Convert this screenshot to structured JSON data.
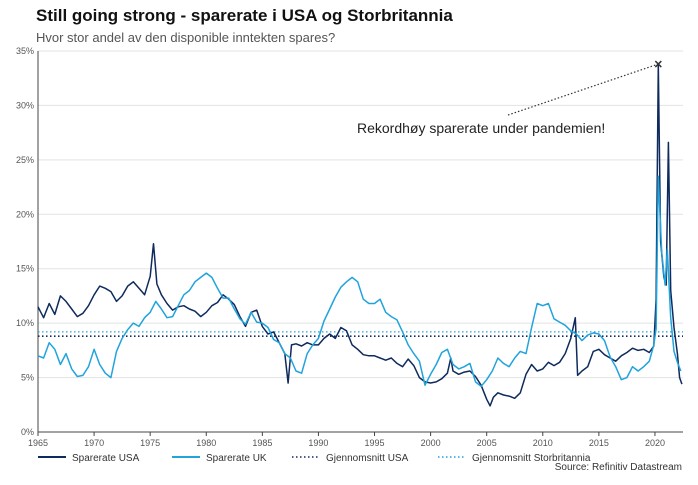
{
  "title": "Still going strong - sparerate i USA og Storbritannia",
  "subtitle": "Hvor stor andel av den disponible inntekten spares?",
  "source": "Source: Refinitiv Datastream",
  "annotation": "Rekordhøy sparerate under pandemien!",
  "colors": {
    "usa": "#0f2a5c",
    "uk": "#21a3dc",
    "grid": "#e3e3e3",
    "axis": "#444444"
  },
  "chart_data": {
    "type": "line",
    "title": "Still going strong - sparerate i USA og Storbritannia",
    "subtitle": "Hvor stor andel av den disponible inntekten spares?",
    "xlabel": "",
    "ylabel": "",
    "xlim": [
      1965,
      2022.5
    ],
    "ylim": [
      0,
      35
    ],
    "x_ticks": [
      1965,
      1970,
      1975,
      1980,
      1985,
      1990,
      1995,
      2000,
      2005,
      2010,
      2015,
      2020
    ],
    "x_tick_labels": [
      "1965",
      "1970",
      "1975",
      "1980",
      "1985",
      "1990",
      "1995",
      "2000",
      "2005",
      "2010",
      "2015",
      "2020"
    ],
    "y_ticks": [
      0,
      5,
      10,
      15,
      20,
      25,
      30,
      35
    ],
    "y_tick_labels": [
      "0%",
      "5%",
      "10%",
      "15%",
      "20%",
      "25%",
      "30%",
      "35%"
    ],
    "grid": true,
    "legend_position": "bottom",
    "series": [
      {
        "name": "Sparerate USA",
        "style": "solid",
        "points": [
          [
            1965.0,
            11.5
          ],
          [
            1965.5,
            10.5
          ],
          [
            1966.0,
            11.8
          ],
          [
            1966.5,
            10.8
          ],
          [
            1967.0,
            12.5
          ],
          [
            1967.5,
            12.0
          ],
          [
            1968.0,
            11.3
          ],
          [
            1968.5,
            10.6
          ],
          [
            1969.0,
            10.9
          ],
          [
            1969.5,
            11.6
          ],
          [
            1970.0,
            12.6
          ],
          [
            1970.5,
            13.4
          ],
          [
            1971.0,
            13.2
          ],
          [
            1971.5,
            12.9
          ],
          [
            1972.0,
            12.0
          ],
          [
            1972.5,
            12.5
          ],
          [
            1973.0,
            13.4
          ],
          [
            1973.5,
            13.8
          ],
          [
            1974.0,
            13.2
          ],
          [
            1974.5,
            12.6
          ],
          [
            1975.0,
            14.3
          ],
          [
            1975.3,
            17.3
          ],
          [
            1975.6,
            13.6
          ],
          [
            1976.0,
            12.6
          ],
          [
            1976.5,
            11.8
          ],
          [
            1977.0,
            11.2
          ],
          [
            1977.5,
            11.5
          ],
          [
            1978.0,
            11.6
          ],
          [
            1978.5,
            11.3
          ],
          [
            1979.0,
            11.1
          ],
          [
            1979.5,
            10.6
          ],
          [
            1980.0,
            11.0
          ],
          [
            1980.5,
            11.6
          ],
          [
            1981.0,
            11.9
          ],
          [
            1981.5,
            12.6
          ],
          [
            1982.0,
            12.2
          ],
          [
            1982.5,
            11.7
          ],
          [
            1983.0,
            10.6
          ],
          [
            1983.5,
            9.7
          ],
          [
            1984.0,
            11.0
          ],
          [
            1984.5,
            11.2
          ],
          [
            1985.0,
            9.7
          ],
          [
            1985.5,
            9.0
          ],
          [
            1986.0,
            9.2
          ],
          [
            1986.5,
            8.2
          ],
          [
            1987.0,
            7.2
          ],
          [
            1987.3,
            4.5
          ],
          [
            1987.6,
            8.0
          ],
          [
            1988.0,
            8.1
          ],
          [
            1988.5,
            7.9
          ],
          [
            1989.0,
            8.2
          ],
          [
            1989.5,
            8.0
          ],
          [
            1990.0,
            8.0
          ],
          [
            1990.5,
            8.6
          ],
          [
            1991.0,
            9.0
          ],
          [
            1991.5,
            8.6
          ],
          [
            1992.0,
            9.6
          ],
          [
            1992.5,
            9.3
          ],
          [
            1993.0,
            8.0
          ],
          [
            1993.5,
            7.6
          ],
          [
            1994.0,
            7.1
          ],
          [
            1994.5,
            7.0
          ],
          [
            1995.0,
            7.0
          ],
          [
            1995.5,
            6.8
          ],
          [
            1996.0,
            6.6
          ],
          [
            1996.5,
            6.8
          ],
          [
            1997.0,
            6.3
          ],
          [
            1997.5,
            6.0
          ],
          [
            1998.0,
            6.7
          ],
          [
            1998.5,
            6.1
          ],
          [
            1999.0,
            5.0
          ],
          [
            1999.5,
            4.6
          ],
          [
            2000.0,
            4.5
          ],
          [
            2000.5,
            4.6
          ],
          [
            2001.0,
            4.9
          ],
          [
            2001.5,
            5.4
          ],
          [
            2001.8,
            6.8
          ],
          [
            2002.0,
            5.6
          ],
          [
            2002.5,
            5.3
          ],
          [
            2003.0,
            5.5
          ],
          [
            2003.5,
            5.6
          ],
          [
            2004.0,
            5.1
          ],
          [
            2004.5,
            4.3
          ],
          [
            2005.0,
            3.0
          ],
          [
            2005.3,
            2.4
          ],
          [
            2005.6,
            3.2
          ],
          [
            2006.0,
            3.6
          ],
          [
            2006.5,
            3.4
          ],
          [
            2007.0,
            3.3
          ],
          [
            2007.5,
            3.1
          ],
          [
            2008.0,
            3.6
          ],
          [
            2008.5,
            5.3
          ],
          [
            2009.0,
            6.2
          ],
          [
            2009.5,
            5.6
          ],
          [
            2010.0,
            5.8
          ],
          [
            2010.5,
            6.4
          ],
          [
            2011.0,
            6.1
          ],
          [
            2011.5,
            6.4
          ],
          [
            2012.0,
            7.2
          ],
          [
            2012.5,
            8.6
          ],
          [
            2012.9,
            10.5
          ],
          [
            2013.1,
            5.2
          ],
          [
            2013.5,
            5.6
          ],
          [
            2014.0,
            6.0
          ],
          [
            2014.5,
            7.4
          ],
          [
            2015.0,
            7.6
          ],
          [
            2015.5,
            7.1
          ],
          [
            2016.0,
            6.8
          ],
          [
            2016.5,
            6.5
          ],
          [
            2017.0,
            7.0
          ],
          [
            2017.5,
            7.3
          ],
          [
            2018.0,
            7.7
          ],
          [
            2018.5,
            7.5
          ],
          [
            2019.0,
            7.6
          ],
          [
            2019.5,
            7.3
          ],
          [
            2019.9,
            7.9
          ],
          [
            2020.1,
            12.2
          ],
          [
            2020.3,
            33.8
          ],
          [
            2020.5,
            17.5
          ],
          [
            2020.8,
            14.2
          ],
          [
            2021.0,
            13.5
          ],
          [
            2021.2,
            26.6
          ],
          [
            2021.4,
            13.0
          ],
          [
            2021.7,
            9.6
          ],
          [
            2022.0,
            7.2
          ],
          [
            2022.2,
            5.0
          ],
          [
            2022.4,
            4.4
          ]
        ]
      },
      {
        "name": "Sparerate UK",
        "style": "solid",
        "points": [
          [
            1965.0,
            7.0
          ],
          [
            1965.5,
            6.8
          ],
          [
            1966.0,
            8.2
          ],
          [
            1966.5,
            7.6
          ],
          [
            1967.0,
            6.2
          ],
          [
            1967.5,
            7.2
          ],
          [
            1968.0,
            5.8
          ],
          [
            1968.5,
            5.1
          ],
          [
            1969.0,
            5.2
          ],
          [
            1969.5,
            6.0
          ],
          [
            1970.0,
            7.6
          ],
          [
            1970.5,
            6.2
          ],
          [
            1971.0,
            5.4
          ],
          [
            1971.5,
            5.0
          ],
          [
            1972.0,
            7.4
          ],
          [
            1972.5,
            8.6
          ],
          [
            1973.0,
            9.4
          ],
          [
            1973.5,
            10.0
          ],
          [
            1974.0,
            9.7
          ],
          [
            1974.5,
            10.5
          ],
          [
            1975.0,
            11.0
          ],
          [
            1975.5,
            12.0
          ],
          [
            1976.0,
            11.3
          ],
          [
            1976.5,
            10.5
          ],
          [
            1977.0,
            10.6
          ],
          [
            1977.5,
            11.6
          ],
          [
            1978.0,
            12.6
          ],
          [
            1978.5,
            13.0
          ],
          [
            1979.0,
            13.8
          ],
          [
            1979.5,
            14.2
          ],
          [
            1980.0,
            14.6
          ],
          [
            1980.5,
            14.2
          ],
          [
            1981.0,
            13.2
          ],
          [
            1981.5,
            12.3
          ],
          [
            1982.0,
            12.3
          ],
          [
            1982.5,
            11.3
          ],
          [
            1983.0,
            10.4
          ],
          [
            1983.5,
            9.9
          ],
          [
            1984.0,
            11.0
          ],
          [
            1984.5,
            10.1
          ],
          [
            1985.0,
            10.0
          ],
          [
            1985.5,
            9.6
          ],
          [
            1986.0,
            8.5
          ],
          [
            1986.5,
            8.2
          ],
          [
            1987.0,
            7.2
          ],
          [
            1987.5,
            6.8
          ],
          [
            1988.0,
            5.6
          ],
          [
            1988.5,
            5.4
          ],
          [
            1989.0,
            7.2
          ],
          [
            1989.5,
            8.0
          ],
          [
            1990.0,
            8.6
          ],
          [
            1990.5,
            10.2
          ],
          [
            1991.0,
            11.3
          ],
          [
            1991.5,
            12.4
          ],
          [
            1992.0,
            13.3
          ],
          [
            1992.5,
            13.8
          ],
          [
            1993.0,
            14.2
          ],
          [
            1993.5,
            13.8
          ],
          [
            1994.0,
            12.2
          ],
          [
            1994.5,
            11.8
          ],
          [
            1995.0,
            11.8
          ],
          [
            1995.5,
            12.2
          ],
          [
            1996.0,
            11.0
          ],
          [
            1996.5,
            10.6
          ],
          [
            1997.0,
            10.3
          ],
          [
            1997.5,
            9.2
          ],
          [
            1998.0,
            8.0
          ],
          [
            1998.5,
            7.2
          ],
          [
            1999.0,
            6.5
          ],
          [
            1999.5,
            4.3
          ],
          [
            2000.0,
            5.3
          ],
          [
            2000.5,
            6.2
          ],
          [
            2001.0,
            7.3
          ],
          [
            2001.5,
            7.6
          ],
          [
            2002.0,
            6.2
          ],
          [
            2002.5,
            5.8
          ],
          [
            2003.0,
            6.0
          ],
          [
            2003.5,
            6.3
          ],
          [
            2004.0,
            4.6
          ],
          [
            2004.5,
            4.2
          ],
          [
            2005.0,
            4.8
          ],
          [
            2005.5,
            5.6
          ],
          [
            2006.0,
            6.8
          ],
          [
            2006.5,
            6.3
          ],
          [
            2007.0,
            6.0
          ],
          [
            2007.5,
            6.8
          ],
          [
            2008.0,
            7.4
          ],
          [
            2008.5,
            7.2
          ],
          [
            2009.0,
            9.6
          ],
          [
            2009.5,
            11.8
          ],
          [
            2010.0,
            11.6
          ],
          [
            2010.5,
            11.8
          ],
          [
            2011.0,
            10.4
          ],
          [
            2011.5,
            10.1
          ],
          [
            2012.0,
            9.8
          ],
          [
            2012.5,
            9.3
          ],
          [
            2013.0,
            9.0
          ],
          [
            2013.5,
            8.4
          ],
          [
            2014.0,
            8.9
          ],
          [
            2014.5,
            9.1
          ],
          [
            2015.0,
            9.0
          ],
          [
            2015.5,
            8.4
          ],
          [
            2016.0,
            6.9
          ],
          [
            2016.5,
            6.0
          ],
          [
            2017.0,
            4.8
          ],
          [
            2017.5,
            5.0
          ],
          [
            2018.0,
            6.0
          ],
          [
            2018.5,
            5.6
          ],
          [
            2019.0,
            6.0
          ],
          [
            2019.5,
            6.5
          ],
          [
            2019.9,
            8.0
          ],
          [
            2020.1,
            9.5
          ],
          [
            2020.3,
            23.5
          ],
          [
            2020.6,
            16.5
          ],
          [
            2020.9,
            13.5
          ],
          [
            2021.1,
            16.8
          ],
          [
            2021.4,
            10.5
          ],
          [
            2021.7,
            7.4
          ],
          [
            2022.0,
            6.4
          ],
          [
            2022.3,
            5.6
          ]
        ]
      },
      {
        "name": "Gjennomsnitt USA",
        "style": "dotted",
        "points": [
          [
            1965,
            8.8
          ],
          [
            2022.5,
            8.8
          ]
        ]
      },
      {
        "name": "Gjennomsnitt Storbritannia",
        "style": "dotted",
        "points": [
          [
            1965,
            9.2
          ],
          [
            2022.5,
            9.2
          ]
        ]
      }
    ],
    "annotations": [
      {
        "text": "Rekordhøy sparerate under pandemien!",
        "points_to": [
          2020.3,
          33.8
        ]
      }
    ]
  }
}
